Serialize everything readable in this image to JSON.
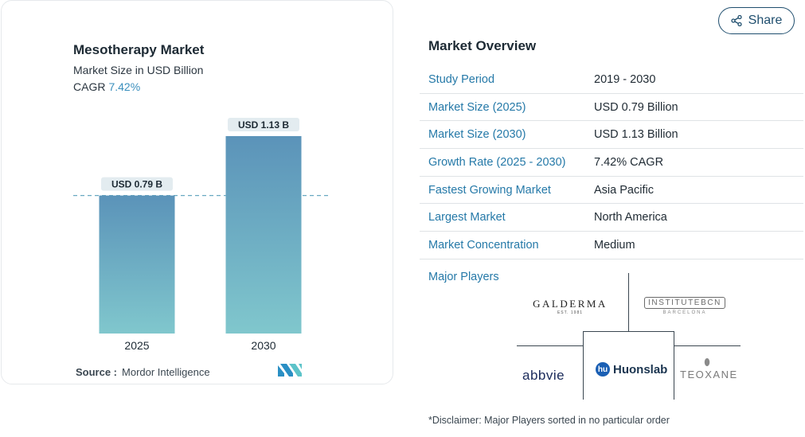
{
  "chart_card": {
    "title": "Mesotherapy Market",
    "subtitle": "Market Size in USD Billion",
    "cagr_label": "CAGR",
    "cagr_value": "7.42%",
    "source_label": "Source :",
    "source_value": "Mordor Intelligence"
  },
  "chart_data": {
    "type": "bar",
    "categories": [
      "2025",
      "2030"
    ],
    "values": [
      0.79,
      1.13
    ],
    "data_labels": [
      "USD 0.79 B",
      "USD 1.13 B"
    ],
    "title": "Mesotherapy Market",
    "subtitle": "Market Size in USD Billion",
    "reference_line": 0.79,
    "ylim": [
      0,
      1.13
    ],
    "colors": {
      "bar_top": "#5b93b9",
      "bar_bottom": "#7ec6cc",
      "label_bg": "#e3ecf0",
      "ref_line": "#6aa9c2"
    }
  },
  "share_button": {
    "label": "Share",
    "icon": "share-icon"
  },
  "overview": {
    "title": "Market Overview",
    "rows": [
      {
        "key": "Study Period",
        "value": "2019 - 2030"
      },
      {
        "key": "Market Size (2025)",
        "value": "USD 0.79 Billion"
      },
      {
        "key": "Market Size (2030)",
        "value": "USD 1.13 Billion"
      },
      {
        "key": "Growth Rate (2025 - 2030)",
        "value": "7.42% CAGR"
      },
      {
        "key": "Fastest Growing Market",
        "value": "Asia Pacific"
      },
      {
        "key": "Largest Market",
        "value": "North America"
      },
      {
        "key": "Market Concentration",
        "value": "Medium"
      }
    ]
  },
  "major_players": {
    "title": "Major Players",
    "logos": {
      "galderma": {
        "name": "GALDERMA",
        "tag": "EST. 1981"
      },
      "institute": {
        "name": "INSTITUTEBCN",
        "sub": "BARCELONA"
      },
      "abbvie": {
        "name": "abbvie"
      },
      "huons": {
        "mark": "hu",
        "name": "Huonslab"
      },
      "teoxane": {
        "name": "TEOXANE"
      }
    },
    "disclaimer": "*Disclaimer: Major Players sorted in no particular order"
  },
  "brand_colors": {
    "accent": "#2579a8",
    "dark": "#1d2a34"
  }
}
